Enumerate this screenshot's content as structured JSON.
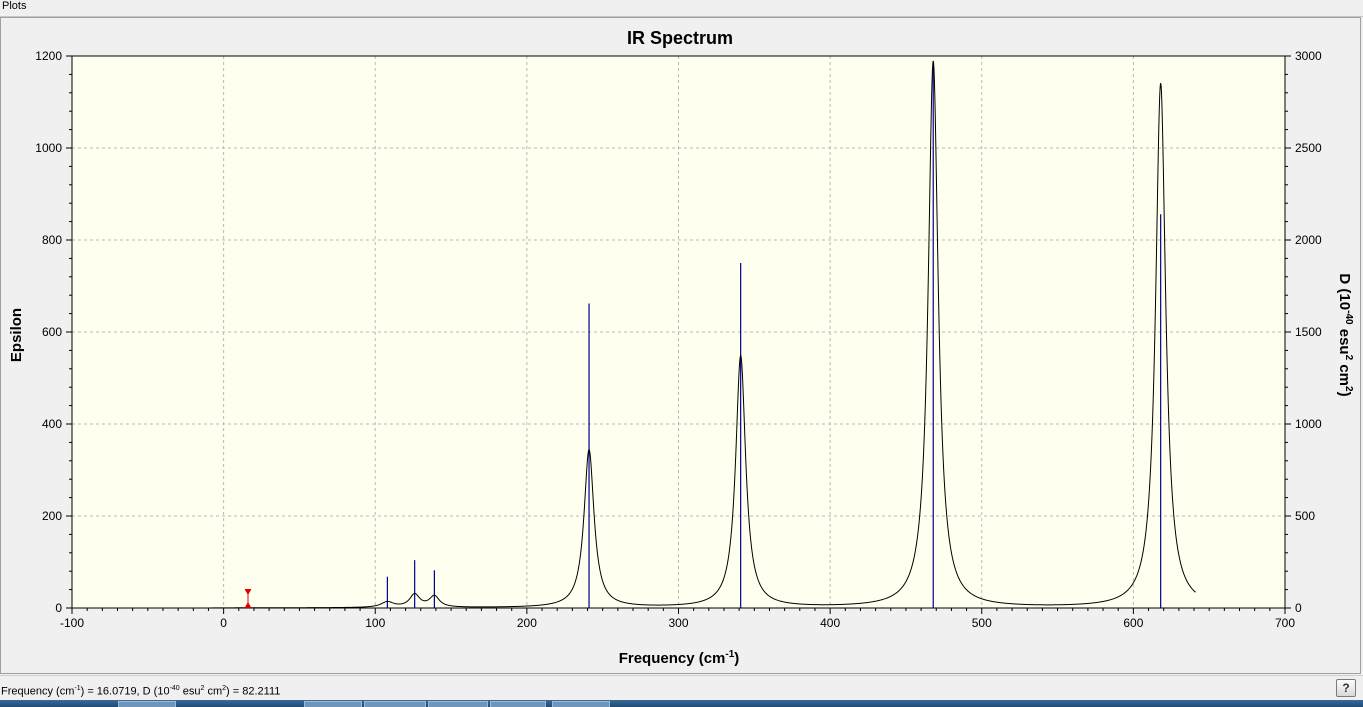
{
  "window": {
    "title": "Plots"
  },
  "status": {
    "freq_label": "Frequency (cm",
    "freq_sup": "-1",
    "freq_value": ") = 16.0719, D (10",
    "d_sup": "-40",
    "d_unit": " esu",
    "d_sup2": "2",
    "d_unit2": " cm",
    "d_sup3": "2",
    "d_value": ") = 82.2111"
  },
  "help_button": {
    "label": "?",
    "icon": "question-mark-icon"
  },
  "colors": {
    "plot_bg": "#ffffef",
    "spectrum_line": "#000000",
    "stick_line": "#00008b",
    "marker": "#dd0000",
    "grid": "#b8b8b8"
  },
  "chart_data": {
    "type": "line",
    "title": "IR Spectrum",
    "xlabel": "Frequency (cm",
    "xlabel_sup": "-1",
    "xlabel_end": ")",
    "ylabel_left": "Epsilon",
    "ylabel_right": "D (10",
    "ylabel_right_sup": "-40",
    "ylabel_right_mid": " esu",
    "ylabel_right_sup2": "2",
    "ylabel_right_mid2": " cm",
    "ylabel_right_sup3": "2",
    "ylabel_right_end": ")",
    "xlim": [
      -100,
      700
    ],
    "ylim_left": [
      0,
      1200
    ],
    "ylim_right": [
      0,
      3000
    ],
    "grid": true,
    "x_ticks": [
      -100,
      0,
      100,
      200,
      300,
      400,
      500,
      600,
      700
    ],
    "y_left_ticks": [
      0,
      200,
      400,
      600,
      800,
      1000,
      1200
    ],
    "y_right_ticks": [
      0,
      500,
      1000,
      1500,
      2000,
      2500,
      3000
    ],
    "spectrum": {
      "name": "Epsilon",
      "x_range": [
        -8,
        641
      ],
      "peaks": [
        {
          "x": 108,
          "height": 12,
          "hwhm": 5
        },
        {
          "x": 126,
          "height": 28,
          "hwhm": 4
        },
        {
          "x": 139,
          "height": 24,
          "hwhm": 4
        },
        {
          "x": 241,
          "height": 343,
          "hwhm": 4
        },
        {
          "x": 341,
          "height": 547,
          "hwhm": 4
        },
        {
          "x": 468,
          "height": 1188,
          "hwhm": 4
        },
        {
          "x": 618,
          "height": 1140,
          "hwhm": 4
        }
      ]
    },
    "sticks": {
      "name": "D",
      "x": [
        108,
        126,
        139,
        241,
        341,
        468,
        618
      ],
      "y": [
        170,
        260,
        205,
        1655,
        1875,
        2965,
        2140
      ]
    },
    "marker": {
      "x": 16.0719,
      "y": 82.2111
    }
  }
}
